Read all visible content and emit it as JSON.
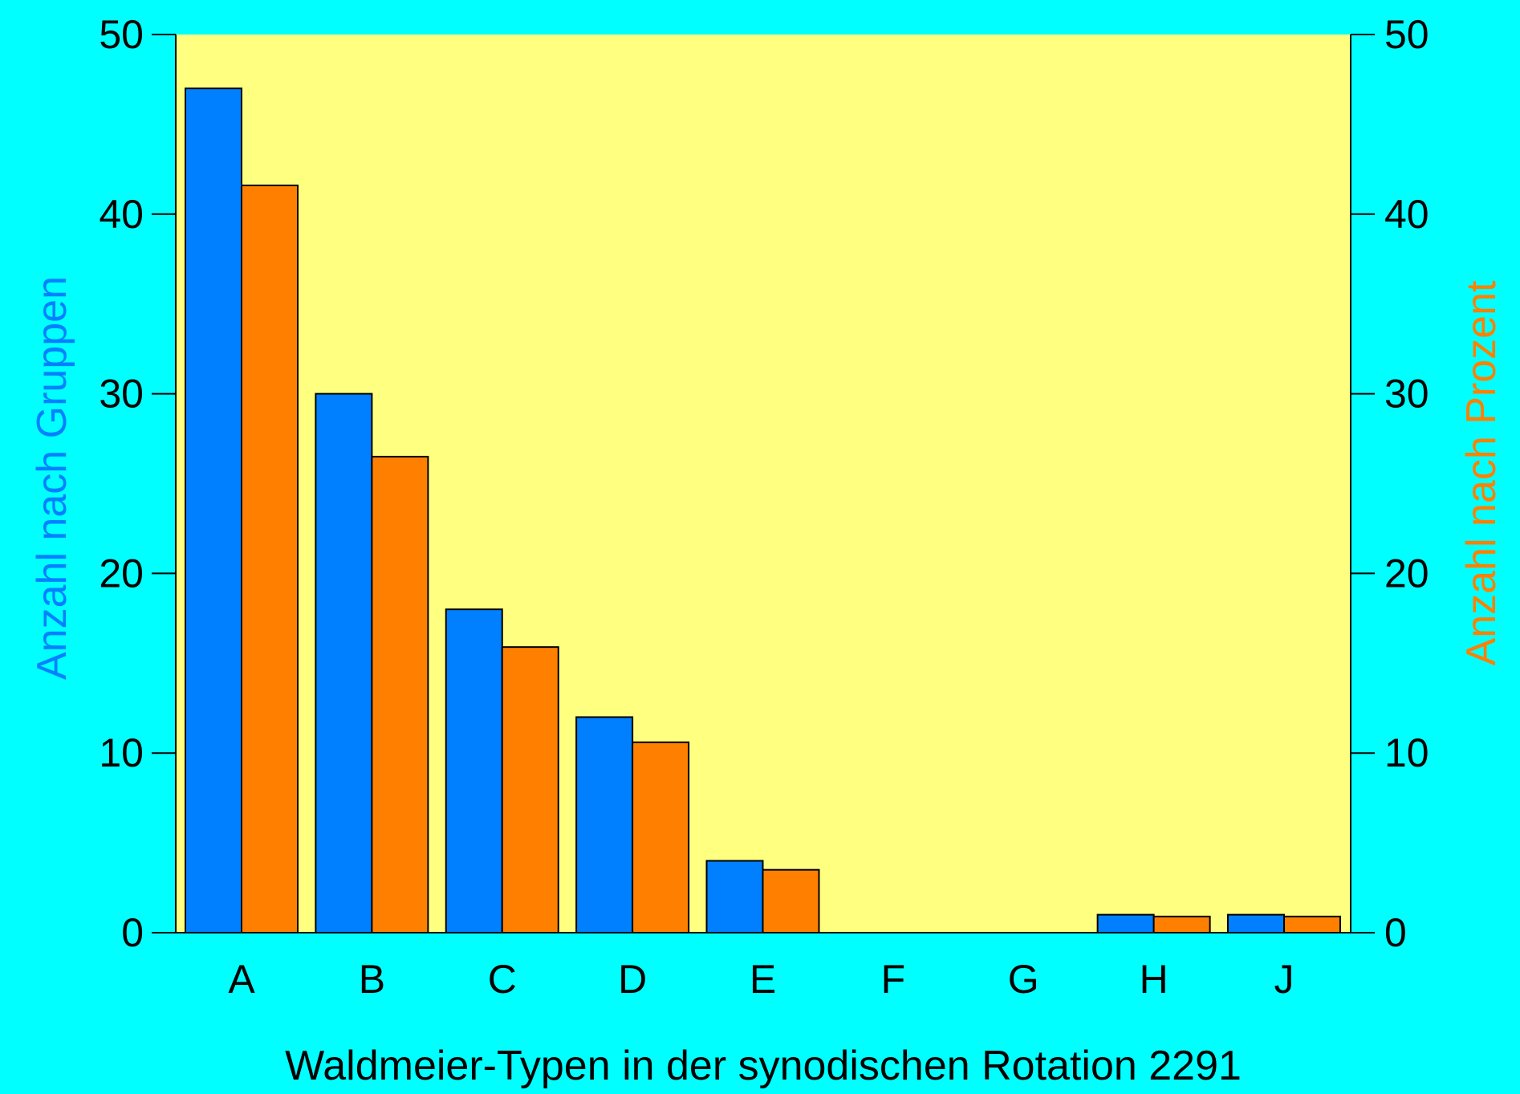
{
  "colors": {
    "background": "#00ffff",
    "plot_background": "#ffff80",
    "axis": "#000000",
    "series_groups": "#0080ff",
    "series_percent": "#ff8000"
  },
  "chart_data": {
    "type": "bar",
    "categories": [
      "A",
      "B",
      "C",
      "D",
      "E",
      "F",
      "G",
      "H",
      "J"
    ],
    "series": [
      {
        "key": "groups",
        "values": [
          47,
          30,
          18,
          12,
          4,
          0,
          0,
          1,
          1
        ],
        "color": "#0080ff",
        "axis": "left"
      },
      {
        "key": "percent",
        "values": [
          41.6,
          26.5,
          15.9,
          10.6,
          3.5,
          0,
          0,
          0.9,
          0.9
        ],
        "color": "#ff8000",
        "axis": "right"
      }
    ],
    "xlabel": "Waldmeier-Typen in der synodischen Rotation 2291",
    "ylabel_left": "Anzahl nach Gruppen",
    "ylabel_right": "Anzahl nach Prozent",
    "ylim_left": [
      0,
      50
    ],
    "ylim_right": [
      0,
      50
    ],
    "yticks": [
      0,
      10,
      20,
      30,
      40,
      50
    ],
    "grid": false,
    "legend": "none"
  }
}
